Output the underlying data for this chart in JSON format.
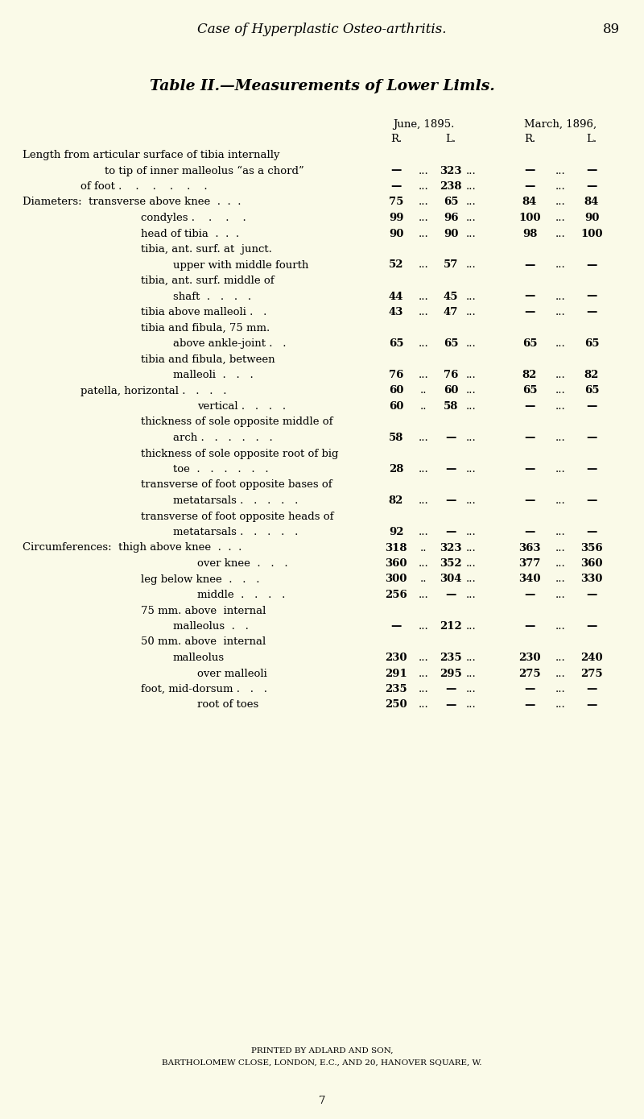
{
  "bg_color": "#FAFAE8",
  "header_title": "Case of Hyperplastic Osteo-arthritis.",
  "page_num": "89",
  "table_title": "Table II.—Measurements of Lower Limls.",
  "footer1": "PRINTED BY ADLARD AND SON,",
  "footer2": "BARTHOLOMEW CLOSE, LONDON, E.C., AND 20, HANOVER SQUARE, W.",
  "footer3": "7",
  "rows": [
    {
      "label": "Length from articular surface of tibia internally",
      "indent": 0,
      "r1": null,
      "l1": null,
      "r2": null,
      "l2": null,
      "sep1": "..."
    },
    {
      "label": "to tip of inner malleolus “as a chord”",
      "indent": 1,
      "r1": "—",
      "l1": "323",
      "r2": "—",
      "l2": "—",
      "sep1": "..."
    },
    {
      "label": "of foot .    .    .    .    .    .",
      "indent": 2,
      "r1": "—",
      "l1": "238",
      "r2": "—",
      "l2": "—",
      "sep1": "..."
    },
    {
      "label": "Diameters:  transverse above knee  .  .  .",
      "indent": 0,
      "r1": "75",
      "l1": "65",
      "r2": "84",
      "l2": "84",
      "sep1": "..."
    },
    {
      "label": "condyles .    .    .    .",
      "indent": 3,
      "r1": "99",
      "l1": "96",
      "r2": "100",
      "l2": "90",
      "sep1": "..."
    },
    {
      "label": "head of tibia  .  .  .",
      "indent": 3,
      "r1": "90",
      "l1": "90",
      "r2": "98",
      "l2": "100",
      "sep1": "..."
    },
    {
      "label": "tibia, ant. surf. at  junct.",
      "indent": 3,
      "r1": null,
      "l1": null,
      "r2": null,
      "l2": null,
      "sep1": "..."
    },
    {
      "label": "upper with middle fourth",
      "indent": 4,
      "r1": "52",
      "l1": "57",
      "r2": "—",
      "l2": "—",
      "sep1": "..."
    },
    {
      "label": "tibia, ant. surf. middle of",
      "indent": 3,
      "r1": null,
      "l1": null,
      "r2": null,
      "l2": null,
      "sep1": "..."
    },
    {
      "label": "shaft  .   .   .   .",
      "indent": 4,
      "r1": "44",
      "l1": "45",
      "r2": "—",
      "l2": "—",
      "sep1": "..."
    },
    {
      "label": "tibia above malleoli .   .",
      "indent": 3,
      "r1": "43",
      "l1": "47",
      "r2": "—",
      "l2": "—",
      "sep1": "..."
    },
    {
      "label": "tibia and fibula, 75 mm.",
      "indent": 3,
      "r1": null,
      "l1": null,
      "r2": null,
      "l2": null,
      "sep1": "..."
    },
    {
      "label": "above ankle-joint .   .",
      "indent": 4,
      "r1": "65",
      "l1": "65",
      "r2": "65",
      "l2": "65",
      "sep1": "..."
    },
    {
      "label": "tibia and fibula, between",
      "indent": 3,
      "r1": null,
      "l1": null,
      "r2": null,
      "l2": null,
      "sep1": "..."
    },
    {
      "label": "malleoli  .   .   .",
      "indent": 4,
      "r1": "76",
      "l1": "76",
      "r2": "82",
      "l2": "82",
      "sep1": "..."
    },
    {
      "label": "patella, horizontal .   .   .   .",
      "indent": 2,
      "r1": "60",
      "l1": "60",
      "r2": "65",
      "l2": "65",
      "sep1": ".."
    },
    {
      "label": "vertical .   .   .   .",
      "indent": 5,
      "r1": "60",
      "l1": "58",
      "r2": "—",
      "l2": "—",
      "sep1": ".."
    },
    {
      "label": "thickness of sole opposite middle of",
      "indent": 3,
      "r1": null,
      "l1": null,
      "r2": null,
      "l2": null,
      "sep1": "..."
    },
    {
      "label": "arch .   .   .   .   .   .",
      "indent": 4,
      "r1": "58",
      "l1": "—",
      "r2": "—",
      "l2": "—",
      "sep1": "..."
    },
    {
      "label": "thickness of sole opposite root of big",
      "indent": 3,
      "r1": null,
      "l1": null,
      "r2": null,
      "l2": null,
      "sep1": "..."
    },
    {
      "label": "toe  .   .   .   .   .   .",
      "indent": 4,
      "r1": "28",
      "l1": "—",
      "r2": "—",
      "l2": "—",
      "sep1": "..."
    },
    {
      "label": "transverse of foot opposite bases of",
      "indent": 3,
      "r1": null,
      "l1": null,
      "r2": null,
      "l2": null,
      "sep1": "..."
    },
    {
      "label": "metatarsals .   .   .   .   .",
      "indent": 4,
      "r1": "82",
      "l1": "—",
      "r2": "—",
      "l2": "—",
      "sep1": "..."
    },
    {
      "label": "transverse of foot opposite heads of",
      "indent": 3,
      "r1": null,
      "l1": null,
      "r2": null,
      "l2": null,
      "sep1": "..."
    },
    {
      "label": "metatarsals .   .   .   .   .",
      "indent": 4,
      "r1": "92",
      "l1": "—",
      "r2": "—",
      "l2": "—",
      "sep1": "..."
    },
    {
      "label": "Circumferences:  thigh above knee  .  .  .",
      "indent": 0,
      "r1": "318",
      "l1": "323",
      "r2": "363",
      "l2": "356",
      "sep1": ".."
    },
    {
      "label": "over knee  .   .   .",
      "indent": 5,
      "r1": "360",
      "l1": "352",
      "r2": "377",
      "l2": "360",
      "sep1": "..."
    },
    {
      "label": "leg below knee  .   .   .",
      "indent": 3,
      "r1": "300",
      "l1": "304",
      "r2": "340",
      "l2": "330",
      "sep1": ".."
    },
    {
      "label": "middle  .   .   .   .",
      "indent": 5,
      "r1": "256",
      "l1": "—",
      "r2": "—",
      "l2": "—",
      "sep1": "..."
    },
    {
      "label": "75 mm. above  internal",
      "indent": 3,
      "r1": null,
      "l1": null,
      "r2": null,
      "l2": null,
      "sep1": "..."
    },
    {
      "label": "malleolus  .   .",
      "indent": 4,
      "r1": "—",
      "l1": "212",
      "r2": "—",
      "l2": "—",
      "sep1": "..."
    },
    {
      "label": "50 mm. above  internal",
      "indent": 3,
      "r1": null,
      "l1": null,
      "r2": null,
      "l2": null,
      "sep1": "..."
    },
    {
      "label": "malleolus",
      "indent": 4,
      "r1": "230",
      "l1": "235",
      "r2": "230",
      "l2": "240",
      "sep1": "..."
    },
    {
      "label": "over malleoli",
      "indent": 5,
      "r1": "291",
      "l1": "295",
      "r2": "275",
      "l2": "275",
      "sep1": "..."
    },
    {
      "label": "foot, mid-dorsum .   .   .",
      "indent": 3,
      "r1": "235",
      "l1": "—",
      "r2": "—",
      "l2": "—",
      "sep1": "..."
    },
    {
      "label": "root of toes",
      "indent": 5,
      "r1": "250",
      "l1": "—",
      "r2": "—",
      "l2": "—",
      "sep1": "..."
    }
  ]
}
